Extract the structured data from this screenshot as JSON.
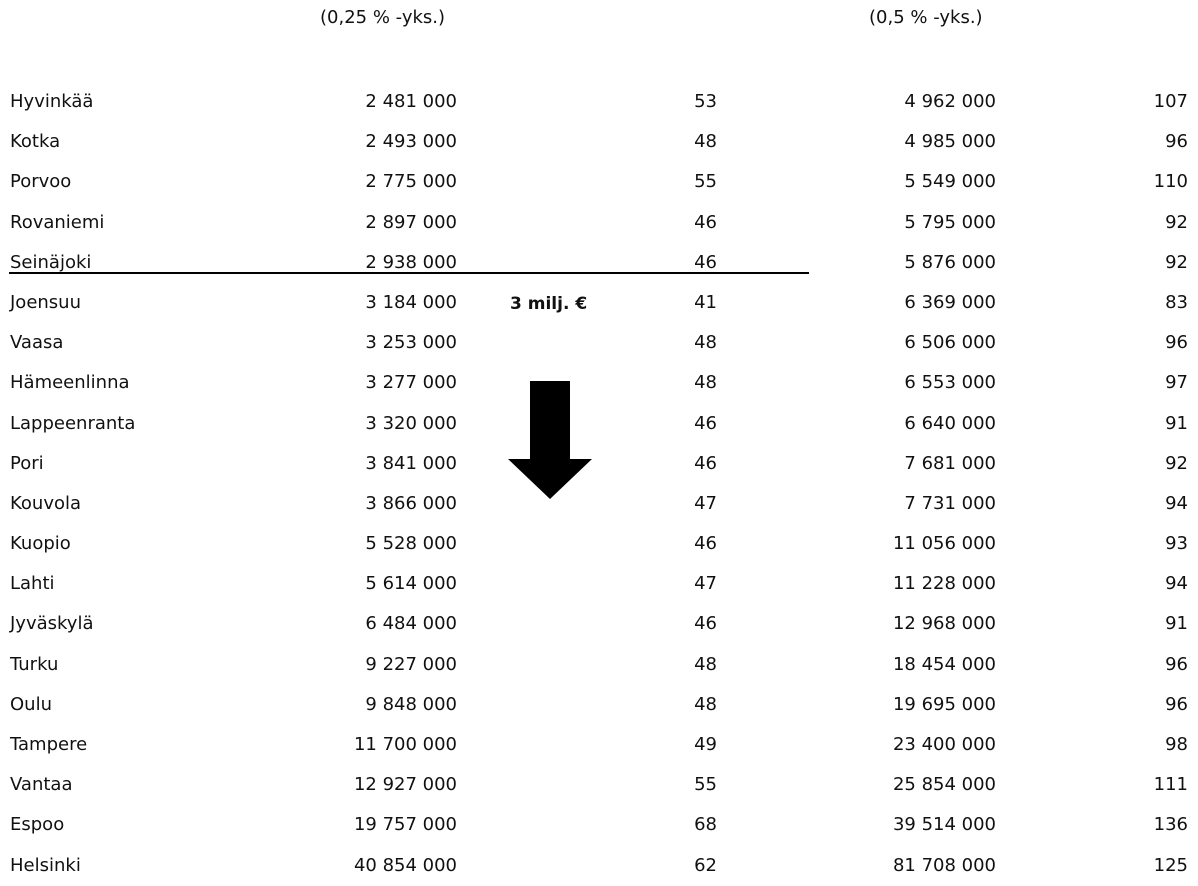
{
  "headers": {
    "col1": "(0,25 % -yks.)",
    "col2": "(0,5 % -yks.)"
  },
  "annotation": {
    "label": "3 milj. €"
  },
  "rows": [
    {
      "city": "Hyvinkää",
      "v1": "2 481 000",
      "v2": "53",
      "v3": "4 962 000",
      "v4": "107"
    },
    {
      "city": "Kotka",
      "v1": "2 493 000",
      "v2": "48",
      "v3": "4 985 000",
      "v4": "96"
    },
    {
      "city": "Porvoo",
      "v1": "2 775 000",
      "v2": "55",
      "v3": "5 549 000",
      "v4": "110"
    },
    {
      "city": "Rovaniemi",
      "v1": "2 897 000",
      "v2": "46",
      "v3": "5 795 000",
      "v4": "92"
    },
    {
      "city": "Seinäjoki",
      "v1": "2 938 000",
      "v2": "46",
      "v3": "5 876 000",
      "v4": "92"
    },
    {
      "city": "Joensuu",
      "v1": "3 184 000",
      "v2": "41",
      "v3": "6 369 000",
      "v4": "83"
    },
    {
      "city": "Vaasa",
      "v1": "3 253 000",
      "v2": "48",
      "v3": "6 506 000",
      "v4": "96"
    },
    {
      "city": "Hämeenlinna",
      "v1": "3 277 000",
      "v2": "48",
      "v3": "6 553 000",
      "v4": "97"
    },
    {
      "city": "Lappeenranta",
      "v1": "3 320 000",
      "v2": "46",
      "v3": "6 640 000",
      "v4": "91"
    },
    {
      "city": "Pori",
      "v1": "3 841 000",
      "v2": "46",
      "v3": "7 681 000",
      "v4": "92"
    },
    {
      "city": "Kouvola",
      "v1": "3 866 000",
      "v2": "47",
      "v3": "7 731 000",
      "v4": "94"
    },
    {
      "city": "Kuopio",
      "v1": "5 528 000",
      "v2": "46",
      "v3": "11 056 000",
      "v4": "93"
    },
    {
      "city": "Lahti",
      "v1": "5 614 000",
      "v2": "47",
      "v3": "11 228 000",
      "v4": "94"
    },
    {
      "city": "Jyväskylä",
      "v1": "6 484 000",
      "v2": "46",
      "v3": "12 968 000",
      "v4": "91"
    },
    {
      "city": "Turku",
      "v1": "9 227 000",
      "v2": "48",
      "v3": "18 454 000",
      "v4": "96"
    },
    {
      "city": "Oulu",
      "v1": "9 848 000",
      "v2": "48",
      "v3": "19 695 000",
      "v4": "96"
    },
    {
      "city": "Tampere",
      "v1": "11 700 000",
      "v2": "49",
      "v3": "23 400 000",
      "v4": "98"
    },
    {
      "city": "Vantaa",
      "v1": "12 927 000",
      "v2": "55",
      "v3": "25 854 000",
      "v4": "111"
    },
    {
      "city": "Espoo",
      "v1": "19 757 000",
      "v2": "68",
      "v3": "39 514 000",
      "v4": "136"
    },
    {
      "city": "Helsinki",
      "v1": "40 854 000",
      "v2": "62",
      "v3": "81 708 000",
      "v4": "125"
    }
  ]
}
